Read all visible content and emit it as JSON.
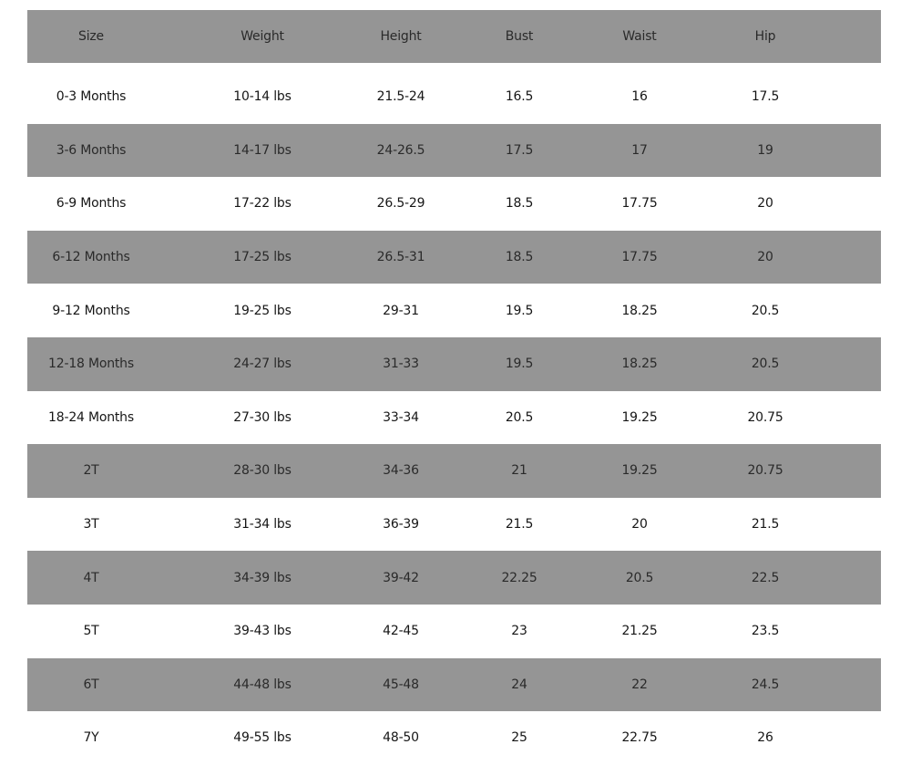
{
  "table": {
    "headers": [
      "Size",
      "Weight",
      "Height",
      "Bust",
      "Waist",
      "Hip"
    ],
    "row_color": "#959595",
    "rows": [
      [
        "0-3 Months",
        "10-14 lbs",
        "21.5-24",
        "16.5",
        "16",
        "17.5"
      ],
      [
        "3-6 Months",
        "14-17 lbs",
        "24-26.5",
        "17.5",
        "17",
        "19"
      ],
      [
        "6-9 Months",
        "17-22 lbs",
        "26.5-29",
        "18.5",
        "17.75",
        "20"
      ],
      [
        "6-12 Months",
        "17-25 lbs",
        "26.5-31",
        "18.5",
        "17.75",
        "20"
      ],
      [
        "9-12 Months",
        "19-25 lbs",
        "29-31",
        "19.5",
        "18.25",
        "20.5"
      ],
      [
        "12-18 Months",
        "24-27 lbs",
        "31-33",
        "19.5",
        "18.25",
        "20.5"
      ],
      [
        "18-24 Months",
        "27-30 lbs",
        "33-34",
        "20.5",
        "19.25",
        "20.75"
      ],
      [
        "2T",
        "28-30 lbs",
        "34-36",
        "21",
        "19.25",
        "20.75"
      ],
      [
        "3T",
        "31-34 lbs",
        "36-39",
        "21.5",
        "20",
        "21.5"
      ],
      [
        "4T",
        "34-39 lbs",
        "39-42",
        "22.25",
        "20.5",
        "22.5"
      ],
      [
        "5T",
        "39-43 lbs",
        "42-45",
        "23",
        "21.25",
        "23.5"
      ],
      [
        "6T",
        "44-48 lbs",
        "45-48",
        "24",
        "22",
        "24.5"
      ],
      [
        "7Y",
        "49-55 lbs",
        "48-50",
        "25",
        "22.75",
        "26"
      ]
    ]
  }
}
